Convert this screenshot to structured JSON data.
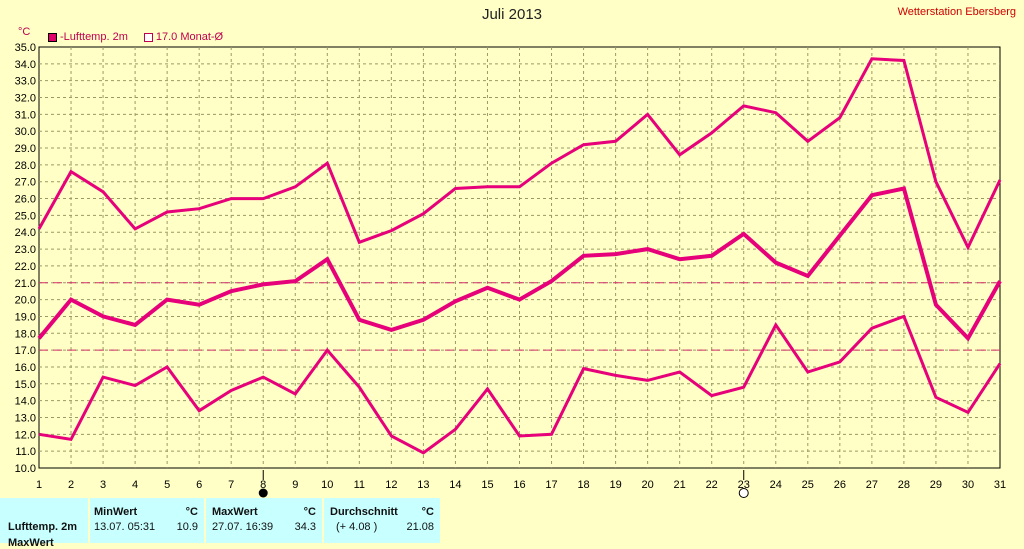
{
  "header": {
    "title": "Juli 2013",
    "station": "Wetterstation Ebersberg",
    "unit": "°C"
  },
  "legend": {
    "series_label": "-Lufttemp. 2m",
    "mean_label": "17.0 Monat-Ø"
  },
  "colors": {
    "background": "#ffffc6",
    "series": "#e6007a",
    "grid": "#9a9a66",
    "table": "#c8ffff"
  },
  "icons": {
    "full_moon_day": 8,
    "full_moon_icon": "filled-circle",
    "new_moon_day": 23,
    "new_moon_icon": "hollow-circle"
  },
  "table": {
    "row_label": "Lufttemp. 2m",
    "row2_label": "MaxWert",
    "min_header": "MinWert",
    "min_unit": "°C",
    "min_time": "13.07.  05:31",
    "min_value": "10.9",
    "max_header": "MaxWert",
    "max_unit": "°C",
    "max_time": "27.07.  16:39",
    "max_value": "34.3",
    "avg_header": "Durchschnitt",
    "avg_unit": "°C",
    "avg_delta": "(+ 4.08 )",
    "avg_value": "21.08"
  },
  "chart_data": {
    "type": "line",
    "x": [
      1,
      2,
      3,
      4,
      5,
      6,
      7,
      8,
      9,
      10,
      11,
      12,
      13,
      14,
      15,
      16,
      17,
      18,
      19,
      20,
      21,
      22,
      23,
      24,
      25,
      26,
      27,
      28,
      29,
      30,
      31
    ],
    "x_ticks": [
      "1",
      "2",
      "3",
      "4",
      "5",
      "6",
      "7",
      "8",
      "9",
      "10",
      "11",
      "12",
      "13",
      "14",
      "15",
      "16",
      "17",
      "18",
      "19",
      "20",
      "21",
      "22",
      "23",
      "24",
      "25",
      "26",
      "27",
      "28",
      "29",
      "30",
      "31"
    ],
    "y_ticks": [
      "10.0",
      "11.0",
      "12.0",
      "13.0",
      "14.0",
      "15.0",
      "16.0",
      "17.0",
      "18.0",
      "19.0",
      "20.0",
      "21.0",
      "22.0",
      "23.0",
      "24.0",
      "25.0",
      "26.0",
      "27.0",
      "28.0",
      "29.0",
      "30.0",
      "31.0",
      "32.0",
      "33.0",
      "34.0",
      "35.0"
    ],
    "ylim": [
      10,
      35
    ],
    "grid": true,
    "series": [
      {
        "role": "max",
        "values": [
          24.2,
          27.6,
          26.4,
          24.2,
          25.2,
          25.4,
          26.0,
          26.0,
          26.7,
          28.1,
          23.4,
          24.1,
          25.1,
          26.6,
          26.7,
          26.7,
          28.1,
          29.2,
          29.4,
          31.0,
          28.6,
          29.9,
          31.5,
          31.1,
          29.4,
          30.8,
          34.3,
          34.2,
          27.0,
          23.1,
          27.1
        ]
      },
      {
        "role": "mean",
        "values": [
          17.7,
          20.0,
          19.0,
          18.5,
          20.0,
          19.7,
          20.5,
          20.9,
          21.1,
          22.4,
          18.8,
          18.2,
          18.8,
          19.9,
          20.7,
          20.0,
          21.1,
          22.6,
          22.7,
          23.0,
          22.4,
          22.6,
          23.9,
          22.2,
          21.4,
          23.8,
          26.2,
          26.6,
          19.7,
          17.7,
          21.1
        ]
      },
      {
        "role": "min",
        "values": [
          12.0,
          11.7,
          15.4,
          14.9,
          16.0,
          13.4,
          14.6,
          15.4,
          14.4,
          17.0,
          14.8,
          11.9,
          10.9,
          12.3,
          14.7,
          11.9,
          12.0,
          15.9,
          15.5,
          15.2,
          15.7,
          14.3,
          14.8,
          18.5,
          15.7,
          16.3,
          18.3,
          19.0,
          14.2,
          13.3,
          16.2
        ]
      }
    ],
    "reference_lines": [
      {
        "value": 21.0,
        "style": "dashed"
      },
      {
        "value": 17.0,
        "style": "dashed"
      }
    ]
  }
}
